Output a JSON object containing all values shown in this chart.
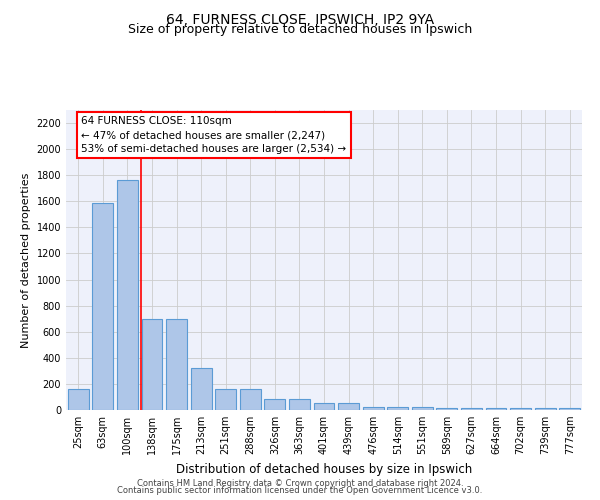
{
  "title1": "64, FURNESS CLOSE, IPSWICH, IP2 9YA",
  "title2": "Size of property relative to detached houses in Ipswich",
  "xlabel": "Distribution of detached houses by size in Ipswich",
  "ylabel": "Number of detached properties",
  "bar_labels": [
    "25sqm",
    "63sqm",
    "100sqm",
    "138sqm",
    "175sqm",
    "213sqm",
    "251sqm",
    "288sqm",
    "326sqm",
    "363sqm",
    "401sqm",
    "439sqm",
    "476sqm",
    "514sqm",
    "551sqm",
    "589sqm",
    "627sqm",
    "664sqm",
    "702sqm",
    "739sqm",
    "777sqm"
  ],
  "bar_values": [
    160,
    1590,
    1760,
    700,
    700,
    320,
    160,
    160,
    85,
    85,
    50,
    50,
    25,
    20,
    20,
    15,
    15,
    15,
    15,
    15,
    15
  ],
  "bar_color": "#aec6e8",
  "bar_edge_color": "#5b9bd5",
  "ylim": [
    0,
    2300
  ],
  "yticks": [
    0,
    200,
    400,
    600,
    800,
    1000,
    1200,
    1400,
    1600,
    1800,
    2000,
    2200
  ],
  "red_line_x": 2.57,
  "annotation_text": "64 FURNESS CLOSE: 110sqm\n← 47% of detached houses are smaller (2,247)\n53% of semi-detached houses are larger (2,534) →",
  "footer1": "Contains HM Land Registry data © Crown copyright and database right 2024.",
  "footer2": "Contains public sector information licensed under the Open Government Licence v3.0.",
  "bg_color": "#eef1fb",
  "grid_color": "#cccccc",
  "title_fontsize": 10,
  "subtitle_fontsize": 9,
  "tick_fontsize": 7,
  "ylabel_fontsize": 8,
  "xlabel_fontsize": 8.5,
  "footer_fontsize": 6,
  "annot_fontsize": 7.5
}
